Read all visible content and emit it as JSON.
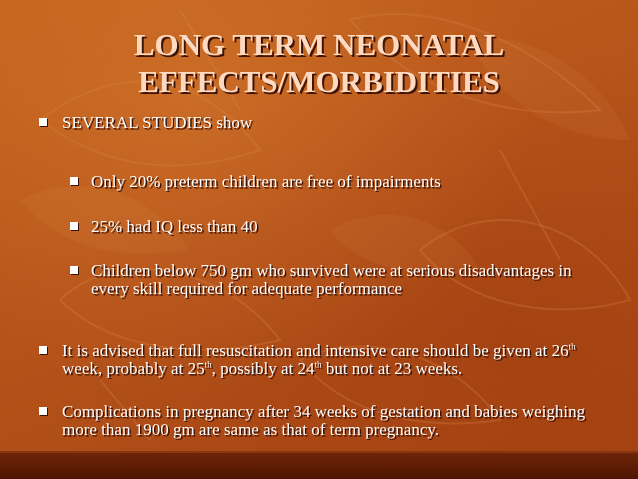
{
  "slide": {
    "title_line1": "LONG TERM NEONATAL",
    "title_line2": "EFFECTS/MORBIDITIES",
    "bullets": [
      {
        "text": "SEVERAL STUDIES show"
      },
      {
        "text": "Only 20% preterm children are free of impairments"
      },
      {
        "text": "25% had IQ less than 40"
      },
      {
        "line1": "Children below 750 gm who survived were at serious disadvantages in",
        "line2": "every skill required for adequate performance"
      },
      {
        "line1": "It is advised that full resuscitation and intensive care should be given at 26",
        "line1_sup": "th",
        "line2_a": "week, probably at 25",
        "line2_sup_a": "th",
        "line2_b": ", possibly at 24",
        "line2_sup_b": "th",
        "line2_c": " but not at 23 weeks."
      },
      {
        "line1": "Complications in pregnancy after 34 weeks of gestation and babies weighing",
        "line2": "more than 1900 gm are same as that of term pregnancy."
      }
    ]
  }
}
